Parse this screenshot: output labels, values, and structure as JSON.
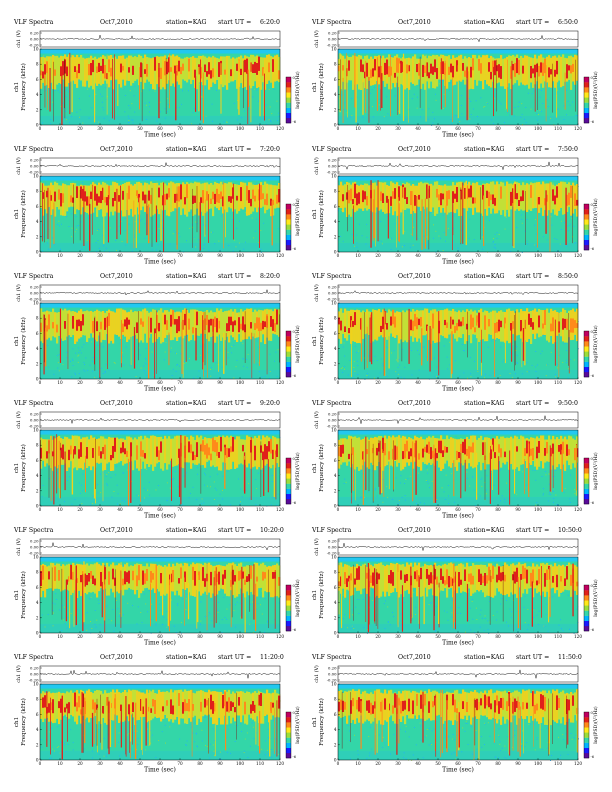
{
  "colors": {
    "spectrogram_bg": "#33d6a8",
    "low_noise": "#1fb0ff",
    "band_top": "#22c8f0",
    "emission": "#f2d21a",
    "strong": "#e0201a",
    "colorbar": [
      "#5a0a9a",
      "#1a1aff",
      "#00b4ff",
      "#33d6a8",
      "#9cdd3a",
      "#ffe81a",
      "#ff8a1a",
      "#e0201a",
      "#c00060"
    ]
  },
  "labels": {
    "panel_title": "VLF Spectra",
    "date": "Oct7,2010",
    "station": "station=KAG",
    "start_prefix": "start  UT =",
    "x_axis": "Time  (sec)",
    "y_top": "ch1 (V)",
    "y_spec_1": "ch1",
    "y_spec_2": "Frequency  (kHz)",
    "colorbar_label": "log(PSD)(V²/Hz)",
    "colorbar_max": "0",
    "colorbar_min": "-6"
  },
  "panels": [
    {
      "start_ut": "6:20:0",
      "col": 0,
      "row": 0,
      "seed": 11
    },
    {
      "start_ut": "6:50:0",
      "col": 1,
      "row": 0,
      "seed": 23
    },
    {
      "start_ut": "7:20:0",
      "col": 0,
      "row": 1,
      "seed": 37
    },
    {
      "start_ut": "7:50:0",
      "col": 1,
      "row": 1,
      "seed": 41
    },
    {
      "start_ut": "8:20:0",
      "col": 0,
      "row": 2,
      "seed": 53
    },
    {
      "start_ut": "8:50:0",
      "col": 1,
      "row": 2,
      "seed": 67
    },
    {
      "start_ut": "9:20:0",
      "col": 0,
      "row": 3,
      "seed": 71
    },
    {
      "start_ut": "9:50:0",
      "col": 1,
      "row": 3,
      "seed": 83
    },
    {
      "start_ut": "10:20:0",
      "col": 0,
      "row": 4,
      "seed": 97
    },
    {
      "start_ut": "10:50:0",
      "col": 1,
      "row": 4,
      "seed": 101
    },
    {
      "start_ut": "11:20:0",
      "col": 0,
      "row": 5,
      "seed": 113
    },
    {
      "start_ut": "11:50:0",
      "col": 1,
      "row": 5,
      "seed": 127
    }
  ],
  "chart_data": {
    "type": "heatmap",
    "title": "VLF Spectra",
    "xlabel": "Time  (sec)",
    "ylabel": "Frequency  (kHz)",
    "xlim": [
      0,
      120
    ],
    "ylim": [
      0,
      10
    ],
    "x_ticks": [
      0,
      10,
      20,
      30,
      40,
      50,
      60,
      70,
      80,
      90,
      100,
      110,
      120
    ],
    "y_ticks": [
      0,
      2,
      4,
      6,
      8,
      10
    ],
    "waveform_ylabel": "ch1 (V)",
    "waveform_ticks": [
      "0.20",
      "0.00",
      "-0.20"
    ],
    "colorbar": {
      "label": "log(PSD)(V²/Hz)",
      "range": [
        -6,
        0
      ],
      "tick_labels": [
        "0",
        "-6"
      ]
    }
  }
}
